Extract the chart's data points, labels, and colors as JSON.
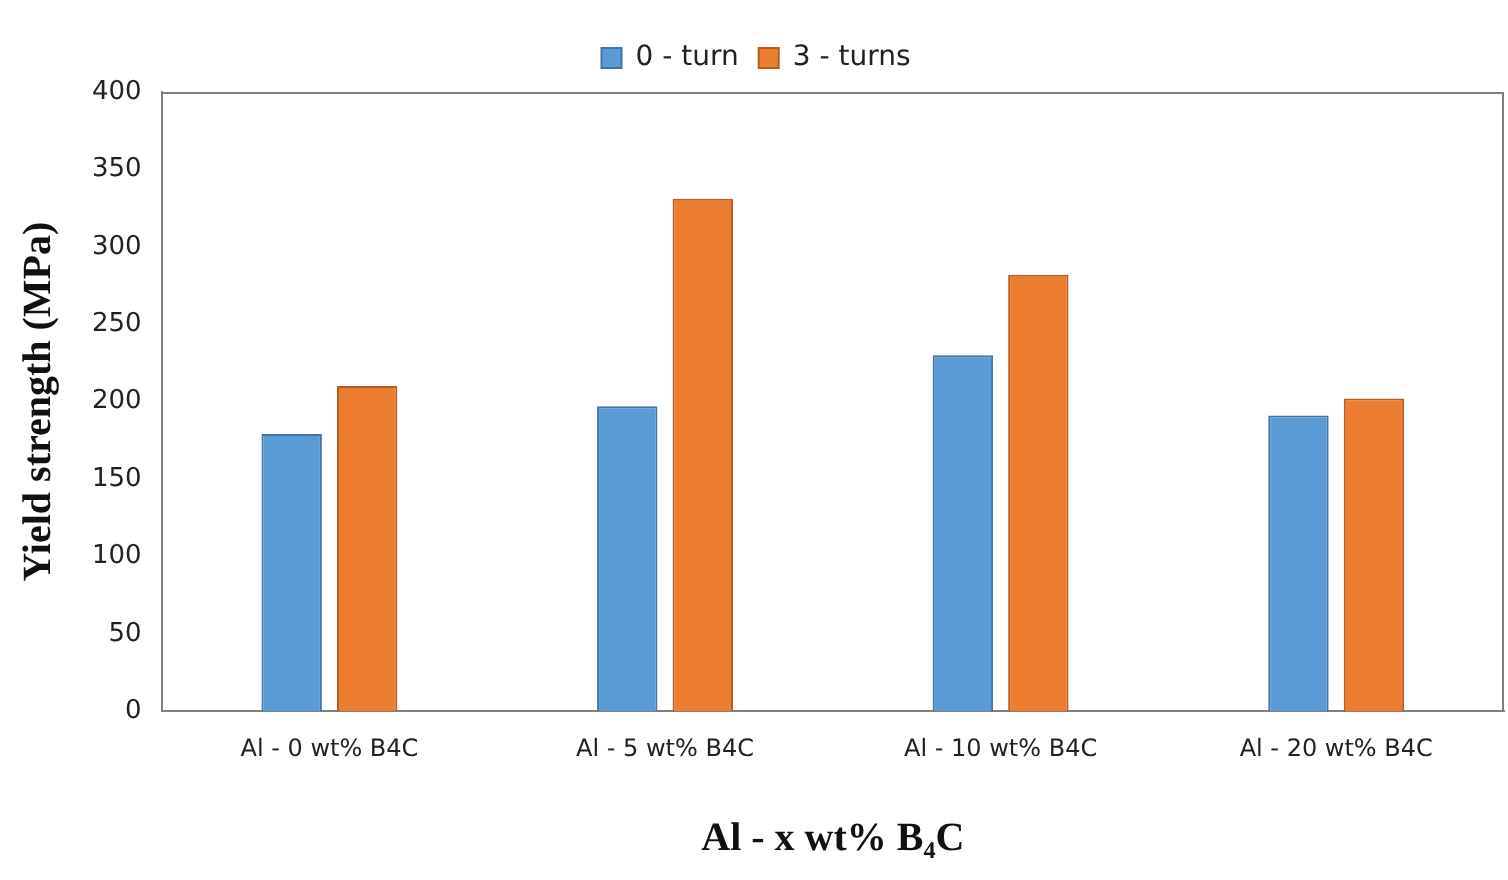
{
  "chart_data": {
    "type": "bar",
    "xlabel": "Al - x wt% B₄C",
    "ylabel": "Yield strength (MPa)",
    "categories": [
      "Al - 0 wt% B4C",
      "Al - 5 wt% B4C",
      "Al - 10 wt% B4C",
      "Al - 20 wt% B4C"
    ],
    "series": [
      {
        "name": "0 - turn",
        "color": "#5b9bd5",
        "values": [
          179,
          197,
          230,
          191
        ]
      },
      {
        "name": "3 - turns",
        "color": "#ed7d31",
        "values": [
          210,
          331,
          282,
          202
        ]
      }
    ],
    "ylim": [
      0,
      400
    ],
    "yticks": [
      0,
      50,
      100,
      150,
      200,
      250,
      300,
      350,
      400
    ],
    "grid": false,
    "legend": "top"
  }
}
